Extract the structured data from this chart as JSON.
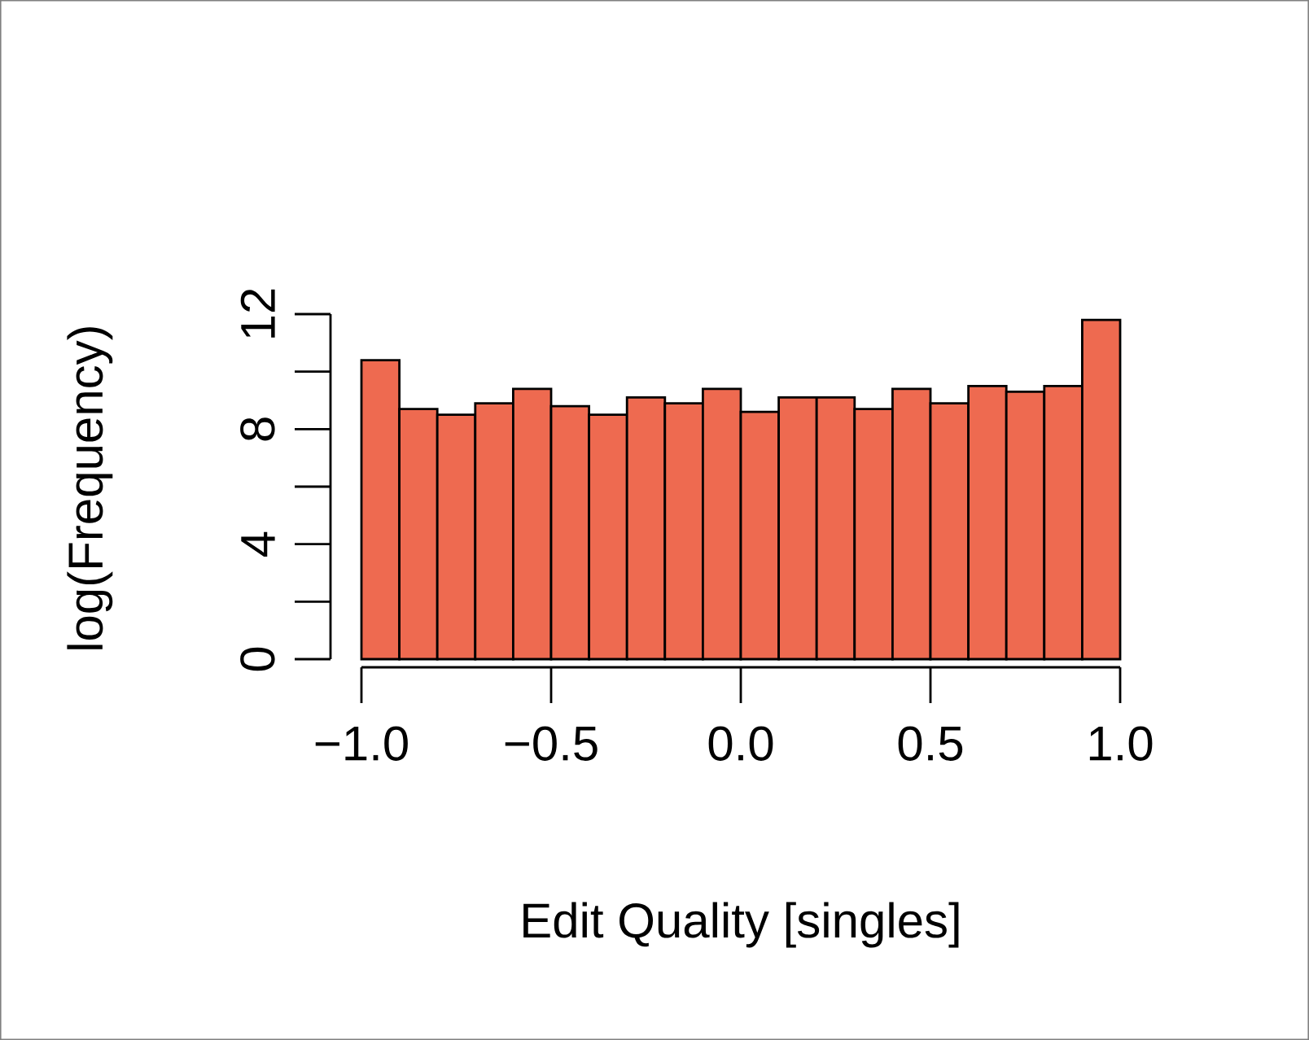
{
  "chart_data": {
    "type": "histogram",
    "xlabel": "Edit Quality [singles]",
    "ylabel": "log(Frequency)",
    "bins": [
      -1.0,
      -0.9,
      -0.8,
      -0.7,
      -0.6,
      -0.5,
      -0.4,
      -0.3,
      -0.2,
      -0.1,
      0.0,
      0.1,
      0.2,
      0.3,
      0.4,
      0.5,
      0.6,
      0.7,
      0.8,
      0.9,
      1.0
    ],
    "values": [
      10.4,
      8.7,
      8.5,
      8.9,
      9.4,
      8.8,
      8.5,
      9.1,
      8.9,
      9.4,
      8.6,
      9.1,
      9.1,
      8.7,
      9.4,
      8.9,
      9.5,
      9.3,
      9.5,
      11.8
    ],
    "color": "#ee6a50",
    "xlim": [
      -1,
      1
    ],
    "xticks": [
      {
        "value": -1,
        "label": "−1.0"
      },
      {
        "value": -0.5,
        "label": "−0.5"
      },
      {
        "value": 0,
        "label": "0.0"
      },
      {
        "value": 0.5,
        "label": "0.5"
      },
      {
        "value": 1,
        "label": "1.0"
      }
    ],
    "ylim": [
      0,
      12
    ],
    "yticks": [
      0,
      4,
      8,
      12
    ],
    "grid": false
  }
}
